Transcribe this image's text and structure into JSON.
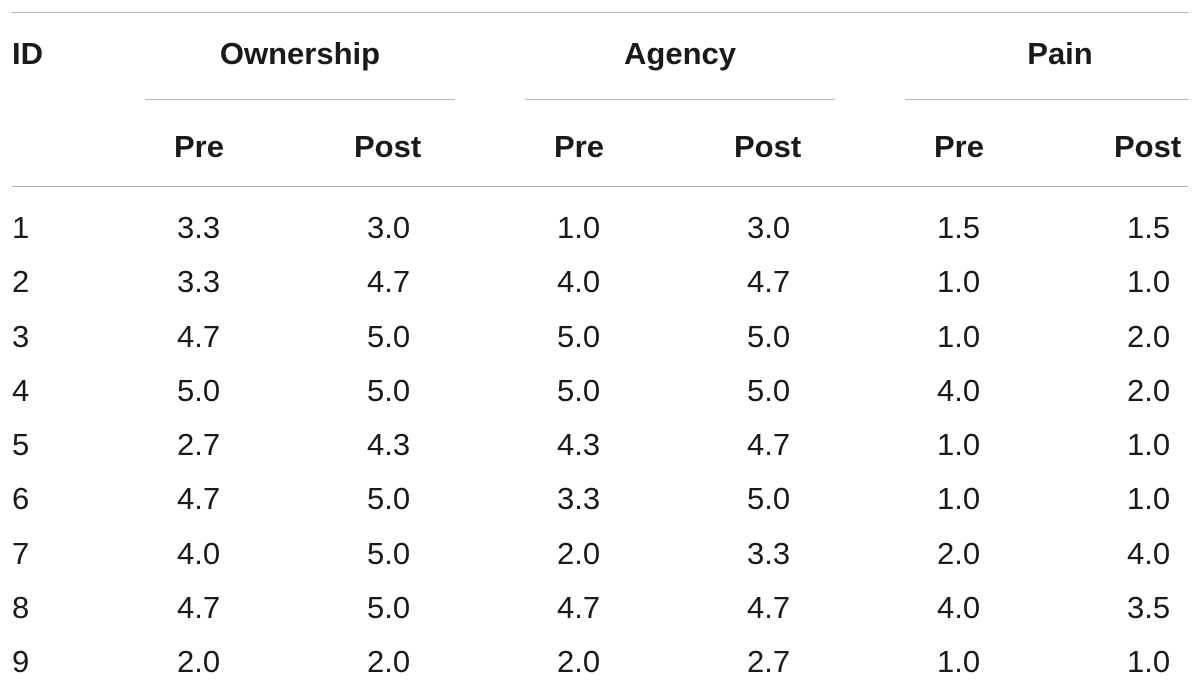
{
  "table": {
    "id_header": "ID",
    "groups": [
      "Ownership",
      "Agency",
      "Pain"
    ],
    "subheaders": [
      "Pre",
      "Post",
      "Pre",
      "Post",
      "Pre",
      "Post"
    ],
    "rows": [
      [
        "1",
        "3.3",
        "3.0",
        "1.0",
        "3.0",
        "1.5",
        "1.5"
      ],
      [
        "2",
        "3.3",
        "4.7",
        "4.0",
        "4.7",
        "1.0",
        "1.0"
      ],
      [
        "3",
        "4.7",
        "5.0",
        "5.0",
        "5.0",
        "1.0",
        "2.0"
      ],
      [
        "4",
        "5.0",
        "5.0",
        "5.0",
        "5.0",
        "4.0",
        "2.0"
      ],
      [
        "5",
        "2.7",
        "4.3",
        "4.3",
        "4.7",
        "1.0",
        "1.0"
      ],
      [
        "6",
        "4.7",
        "5.0",
        "3.3",
        "5.0",
        "1.0",
        "1.0"
      ],
      [
        "7",
        "4.0",
        "5.0",
        "2.0",
        "3.3",
        "2.0",
        "4.0"
      ],
      [
        "8",
        "4.7",
        "5.0",
        "4.7",
        "4.7",
        "4.0",
        "3.5"
      ],
      [
        "9",
        "2.0",
        "2.0",
        "2.0",
        "2.7",
        "1.0",
        "1.0"
      ]
    ]
  }
}
